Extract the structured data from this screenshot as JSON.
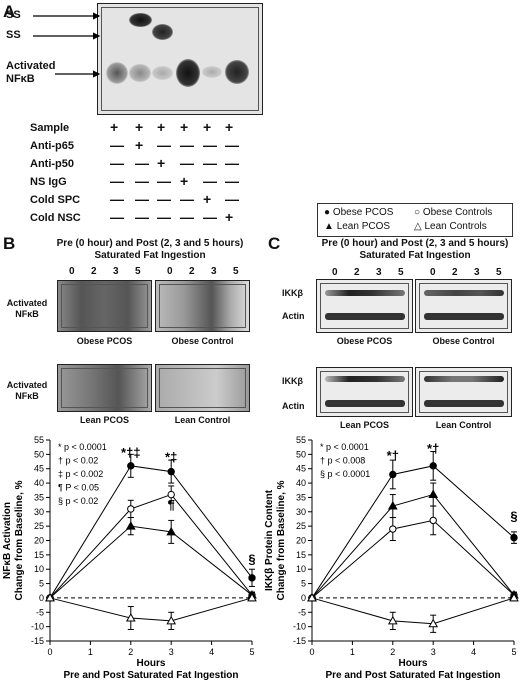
{
  "panels": {
    "a": "A",
    "b": "B",
    "c": "C"
  },
  "panelA": {
    "arrows": [
      "SS",
      "SS",
      "Activated NFκB"
    ],
    "rows": [
      {
        "label": "Sample",
        "marks": [
          "+",
          "+",
          "+",
          "+",
          "+",
          "+"
        ]
      },
      {
        "label": "Anti-p65",
        "marks": [
          "—",
          "+",
          "—",
          "—",
          "—",
          "—"
        ]
      },
      {
        "label": "Anti-p50",
        "marks": [
          "—",
          "—",
          "+",
          "—",
          "—",
          "—"
        ]
      },
      {
        "label": "NS IgG",
        "marks": [
          "—",
          "—",
          "—",
          "+",
          "—",
          "—"
        ]
      },
      {
        "label": "Cold SPC",
        "marks": [
          "—",
          "—",
          "—",
          "—",
          "+",
          "—"
        ]
      },
      {
        "label": "Cold NSC",
        "marks": [
          "—",
          "—",
          "—",
          "—",
          "—",
          "+"
        ]
      }
    ]
  },
  "panelB": {
    "title1": "Pre (0 hour) and Post (2, 3 and 5 hours)",
    "title2": "Saturated Fat Ingestion",
    "lanes": [
      "0",
      "2",
      "3",
      "5"
    ],
    "rowlabel1": "Activated NFκB",
    "rowlabel2": "Activated NFκB",
    "gel_captions": [
      "Obese PCOS",
      "Obese Control",
      "Lean PCOS",
      "Lean Control"
    ]
  },
  "panelC": {
    "legend": [
      "Obese PCOS",
      "Obese Controls",
      "Lean PCOS",
      "Lean Controls"
    ],
    "title1": "Pre (0 hour) and Post (2, 3 and 5 hours)",
    "title2": "Saturated Fat Ingestion",
    "lanes": [
      "0",
      "2",
      "3",
      "5"
    ],
    "row_ikk": "IKKβ",
    "row_actin": "Actin",
    "gel_captions": [
      "Obese PCOS",
      "Obese Control",
      "Lean PCOS",
      "Lean Control"
    ]
  },
  "chart_data": [
    {
      "type": "line",
      "ylabel": "NFκB Activation Change from Baseline, %",
      "xlabel": "Hours",
      "xlabel2": "Pre and Post Saturated Fat Ingestion",
      "xlim": [
        0,
        5
      ],
      "ylim": [
        -15,
        55
      ],
      "xticks": [
        0,
        1,
        2,
        3,
        4,
        5
      ],
      "yticks": [
        -15,
        -10,
        -5,
        0,
        5,
        10,
        15,
        20,
        25,
        30,
        35,
        40,
        45,
        50,
        55
      ],
      "x": [
        0,
        2,
        3,
        5
      ],
      "series": [
        {
          "name": "Obese PCOS",
          "marker": "filled-circle",
          "values": [
            0,
            46,
            44,
            7
          ],
          "err": [
            0,
            4,
            4,
            3
          ]
        },
        {
          "name": "Obese Controls",
          "marker": "open-circle",
          "values": [
            0,
            31,
            36,
            1
          ],
          "err": [
            0,
            3,
            3,
            1
          ]
        },
        {
          "name": "Lean PCOS",
          "marker": "filled-triangle",
          "values": [
            0,
            25,
            23,
            1
          ],
          "err": [
            0,
            3,
            4,
            1
          ]
        },
        {
          "name": "Lean Controls",
          "marker": "open-triangle",
          "values": [
            0,
            -7,
            -8,
            0
          ],
          "err": [
            0,
            4,
            3,
            1
          ]
        }
      ],
      "key": [
        "* p < 0.0001",
        "† p < 0.02",
        "‡ p < 0.002",
        "¶ P < 0.05",
        "§ p < 0.02"
      ],
      "annotations": [
        {
          "text": "*†‡",
          "x": 2,
          "y": 49
        },
        {
          "text": "*‡",
          "x": 3,
          "y": 47.5
        },
        {
          "text": "¶",
          "x": 3,
          "y": 31
        },
        {
          "text": "§",
          "x": 5,
          "y": 12
        }
      ]
    },
    {
      "type": "line",
      "ylabel": "IKKβ Protein Content Change from Baseline, %",
      "xlabel": "Hours",
      "xlabel2": "Pre and Post Saturated Fat Ingestion",
      "xlim": [
        0,
        5
      ],
      "ylim": [
        -15,
        55
      ],
      "xticks": [
        0,
        1,
        2,
        3,
        4,
        5
      ],
      "yticks": [
        -15,
        -10,
        -5,
        0,
        5,
        10,
        15,
        20,
        25,
        30,
        35,
        40,
        45,
        50,
        55
      ],
      "x": [
        0,
        2,
        3,
        5
      ],
      "series": [
        {
          "name": "Obese PCOS",
          "marker": "filled-circle",
          "values": [
            0,
            43,
            46,
            21
          ],
          "err": [
            0,
            5,
            5,
            2
          ]
        },
        {
          "name": "Obese Controls",
          "marker": "open-circle",
          "values": [
            0,
            24,
            27,
            1
          ],
          "err": [
            0,
            4,
            5,
            1
          ]
        },
        {
          "name": "Lean PCOS",
          "marker": "filled-triangle",
          "values": [
            0,
            32,
            36,
            1
          ],
          "err": [
            0,
            4,
            4,
            1
          ]
        },
        {
          "name": "Lean Controls",
          "marker": "open-triangle",
          "values": [
            0,
            -8,
            -9,
            0
          ],
          "err": [
            0,
            3,
            3,
            1
          ]
        }
      ],
      "key": [
        "* p < 0.0001",
        "† p < 0.008",
        "§ p < 0.0001"
      ],
      "annotations": [
        {
          "text": "*†",
          "x": 2,
          "y": 48
        },
        {
          "text": "*†",
          "x": 3,
          "y": 50.5
        },
        {
          "text": "§",
          "x": 5,
          "y": 27
        }
      ]
    }
  ]
}
